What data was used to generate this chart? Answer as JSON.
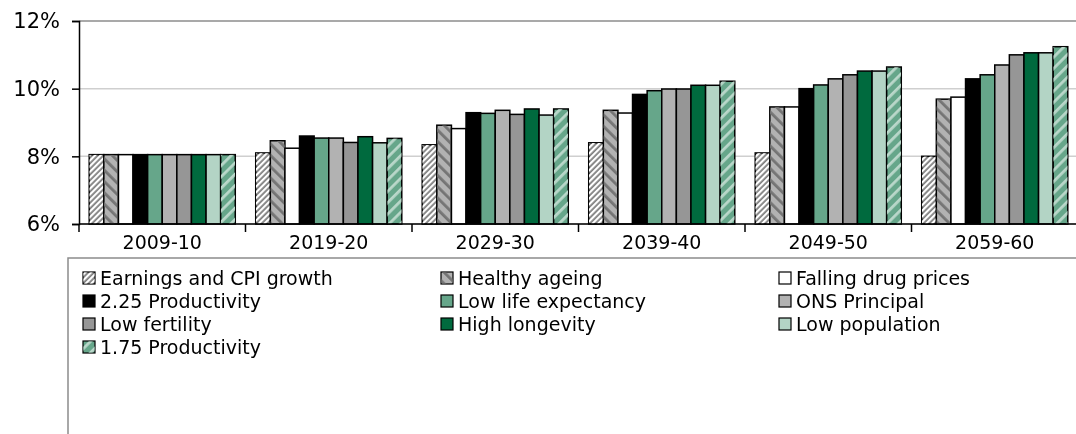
{
  "chart_data": {
    "type": "bar",
    "categories": [
      "2009-10",
      "2019-20",
      "2029-30",
      "2039-40",
      "2049-50",
      "2059-60"
    ],
    "series": [
      {
        "name": "Earnings and CPI growth",
        "color": "#7f7f7f",
        "values": [
          8.05,
          8.1,
          8.34,
          8.4,
          8.1,
          8.0
        ]
      },
      {
        "name": "Healthy ageing",
        "color": "#b2b2b2",
        "values": [
          8.05,
          8.46,
          8.92,
          9.36,
          9.46,
          9.69
        ]
      },
      {
        "name": "Falling drug prices",
        "color": "#ffffff",
        "values": [
          8.05,
          8.24,
          8.82,
          9.28,
          9.46,
          9.75
        ]
      },
      {
        "name": "2.25 Productivity",
        "color": "#000000",
        "values": [
          8.05,
          8.6,
          9.29,
          9.83,
          10.0,
          10.29
        ]
      },
      {
        "name": "Low life expectancy",
        "color": "#66a68a",
        "values": [
          8.05,
          8.54,
          9.27,
          9.94,
          10.11,
          10.41
        ]
      },
      {
        "name": "ONS Principal",
        "color": "#b2b2b2",
        "values": [
          8.05,
          8.54,
          9.36,
          9.99,
          10.29,
          10.7
        ]
      },
      {
        "name": "Low fertility",
        "color": "#969696",
        "values": [
          8.05,
          8.41,
          9.24,
          9.99,
          10.41,
          11.0
        ]
      },
      {
        "name": "High longevity",
        "color": "#006a3e",
        "values": [
          8.05,
          8.58,
          9.4,
          10.1,
          10.52,
          11.06
        ]
      },
      {
        "name": "Low population",
        "color": "#b3d4c5",
        "values": [
          8.05,
          8.4,
          9.22,
          10.1,
          10.52,
          11.06
        ]
      },
      {
        "name": "1.75 Productivity",
        "color": "#66a68a",
        "values": [
          8.05,
          8.53,
          9.4,
          10.22,
          10.64,
          11.24
        ]
      }
    ],
    "ylim": [
      6,
      12
    ],
    "yticks": [
      {
        "value": 6,
        "label": "6%"
      },
      {
        "value": 8,
        "label": "8%"
      },
      {
        "value": 10,
        "label": "10%"
      },
      {
        "value": 12,
        "label": "12%"
      }
    ],
    "grid": "y",
    "legend": "bottom"
  }
}
